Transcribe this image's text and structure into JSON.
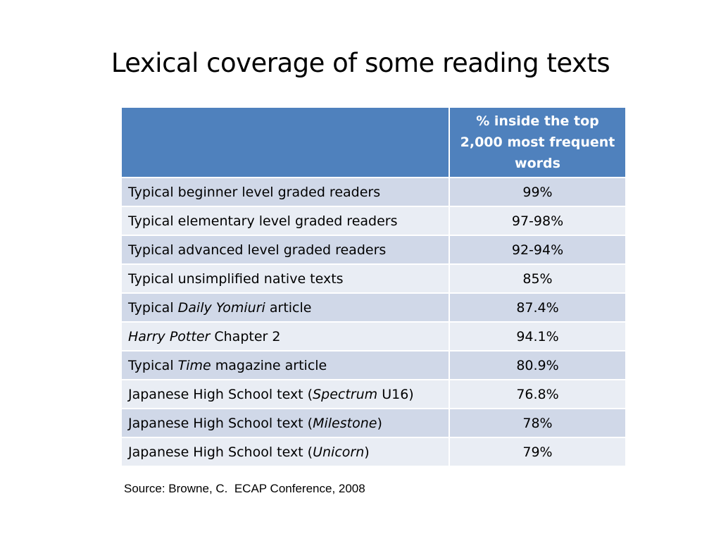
{
  "title": "Lexical coverage of some reading texts",
  "table": {
    "header": {
      "col1": "",
      "col2_line1": "% inside the top",
      "col2_line2": "2,000 most frequent",
      "col2_line3": "words"
    },
    "rows": [
      {
        "pre": "Typical beginner level graded readers",
        "ital": "",
        "post": "",
        "value": "99%"
      },
      {
        "pre": "Typical elementary level graded readers",
        "ital": "",
        "post": "",
        "value": "97-98%"
      },
      {
        "pre": "Typical advanced level graded readers",
        "ital": "",
        "post": "",
        "value": "92-94%"
      },
      {
        "pre": "Typical unsimplified native texts",
        "ital": "",
        "post": "",
        "value": "85%"
      },
      {
        "pre": "Typical ",
        "ital": "Daily Yomiuri",
        "post": " article",
        "value": "87.4%"
      },
      {
        "pre": "",
        "ital": "Harry Potter",
        "post": " Chapter 2",
        "value": "94.1%"
      },
      {
        "pre": "Typical ",
        "ital": "Time",
        "post": " magazine article",
        "value": "80.9%"
      },
      {
        "pre": "Japanese High School text (",
        "ital": "Spectrum",
        "post": " U16)",
        "value": "76.8%"
      },
      {
        "pre": "Japanese High School text (",
        "ital": "Milestone",
        "post": ")",
        "value": "78%"
      },
      {
        "pre": "Japanese High School text (",
        "ital": "Unicorn",
        "post": ")",
        "value": "79%"
      }
    ]
  },
  "source": "Source: Browne, C.  ECAP Conference, 2008",
  "colors": {
    "header_bg": "#4f81bd",
    "row_odd_bg": "#d0d8e8",
    "row_even_bg": "#e9edf4"
  }
}
